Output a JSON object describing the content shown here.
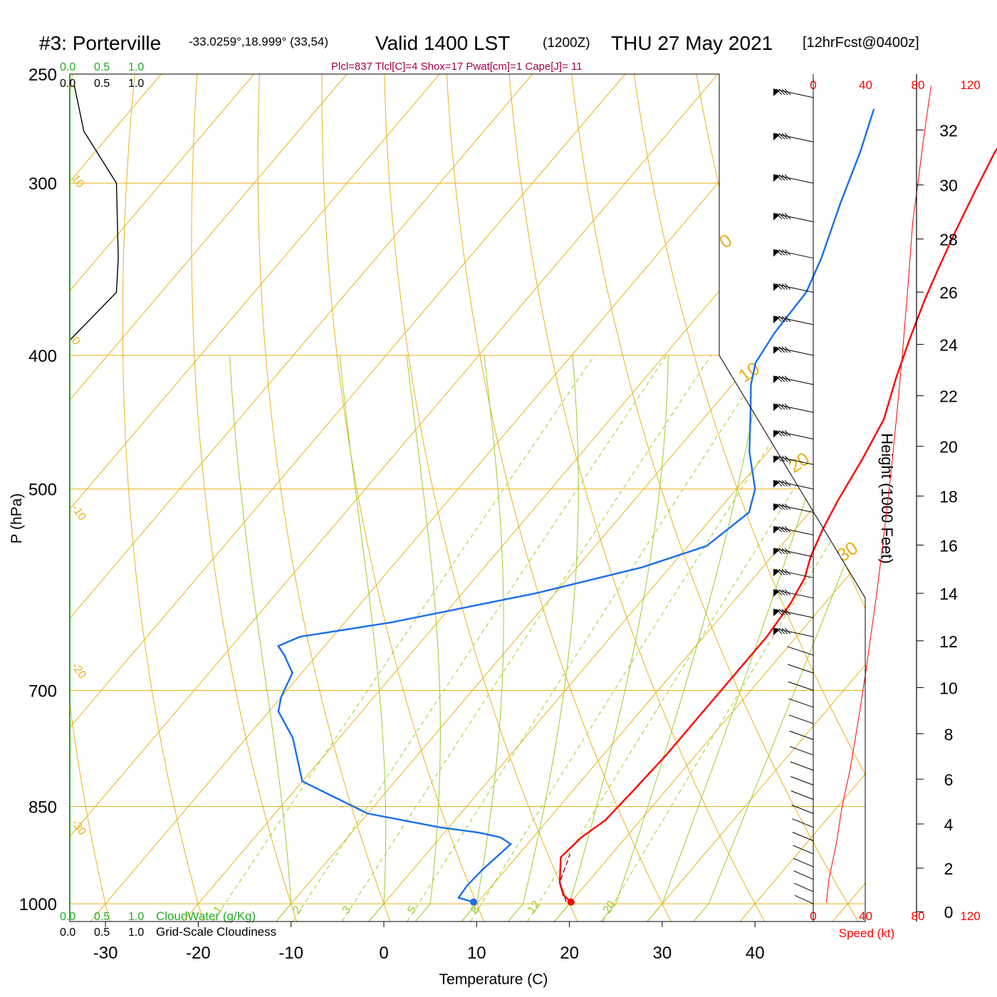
{
  "header": {
    "station": "#3: Porterville",
    "coords": "-33.0259°,18.999° (33,54)",
    "valid": "Valid 1400 LST",
    "zulu": "(1200Z)",
    "date": "THU 27 May 2021",
    "forecast": "[12hrFcst@0400z]",
    "params": "Plcl=837 Tlcl[C]=4 Shox=17 Pwat[cm]=1 Cape[J]= 11"
  },
  "colors": {
    "isotherm": "#e8b21c",
    "moist_adiabat": "#9ccc2c",
    "mixing_ratio": "#9ccc2c",
    "temperature": "#ff0000",
    "dewpoint": "#1a6fe8",
    "cloud_axis": "#22aa22",
    "params": "#a0004c",
    "wind_speed": "#ff0000",
    "frame": "#000000"
  },
  "chart_data": {
    "type": "line",
    "title": "#3: Porterville  Valid 1400 LST (1200Z) THU 27 May 2021",
    "xlabel": "Temperature (C)",
    "ylabel": "P (hPa)",
    "y2label": "Height (1000 Feet)",
    "xlim": [
      -35,
      36
    ],
    "ylim": [
      1030,
      250
    ],
    "y_scale": "log",
    "x_ticks": [
      "-30",
      "-20",
      "-10",
      "0",
      "10",
      "20",
      "30",
      "40"
    ],
    "y_ticks": [
      "250",
      "300",
      "400",
      "500",
      "700",
      "850",
      "1000"
    ],
    "height_ticks": [
      "0",
      "2",
      "4",
      "6",
      "8",
      "10",
      "12",
      "14",
      "16",
      "18",
      "20",
      "22",
      "24",
      "26",
      "28",
      "30",
      "32"
    ],
    "series": [
      {
        "name": "Temperature",
        "points": [
          [
            20.0,
            997
          ],
          [
            18.5,
            985
          ],
          [
            17.0,
            965
          ],
          [
            14.8,
            925
          ],
          [
            15.2,
            895
          ],
          [
            16.2,
            870
          ],
          [
            16.5,
            830
          ],
          [
            16.8,
            780
          ],
          [
            16.8,
            730
          ],
          [
            16.8,
            690
          ],
          [
            16.8,
            640
          ],
          [
            16.3,
            605
          ],
          [
            15.5,
            580
          ],
          [
            14.2,
            560
          ],
          [
            13.0,
            535
          ],
          [
            12.0,
            510
          ],
          [
            10.8,
            475
          ],
          [
            9.5,
            445
          ],
          [
            7.0,
            415
          ],
          [
            5.0,
            390
          ],
          [
            3.0,
            365
          ],
          [
            1.5,
            345
          ],
          [
            0.0,
            325
          ],
          [
            -1.5,
            305
          ],
          [
            -3.0,
            285
          ],
          [
            -3.8,
            265
          ]
        ],
        "legend": "Temperature"
      },
      {
        "name": "Dewpoint",
        "points": [
          [
            9.5,
            997
          ],
          [
            7.5,
            990
          ],
          [
            7.3,
            970
          ],
          [
            7.5,
            945
          ],
          [
            8.2,
            905
          ],
          [
            6.5,
            895
          ],
          [
            3.8,
            888
          ],
          [
            -1.0,
            880
          ],
          [
            -10.0,
            860
          ],
          [
            -20.0,
            815
          ],
          [
            -25.0,
            758
          ],
          [
            -29.0,
            725
          ],
          [
            -30.0,
            708
          ],
          [
            -31.0,
            680
          ],
          [
            -33.5,
            660
          ],
          [
            -35.0,
            650
          ],
          [
            -33.5,
            640
          ],
          [
            -25.0,
            625
          ],
          [
            -12.0,
            595
          ],
          [
            -3.0,
            570
          ],
          [
            2.0,
            550
          ],
          [
            3.5,
            520
          ],
          [
            2.0,
            500
          ],
          [
            -2.0,
            470
          ],
          [
            -5.5,
            440
          ],
          [
            -8.0,
            420
          ],
          [
            -9.5,
            405
          ],
          [
            -10.2,
            385
          ],
          [
            -10.5,
            360
          ],
          [
            -12.0,
            340
          ],
          [
            -15.0,
            310
          ],
          [
            -17.5,
            285
          ],
          [
            -20.0,
            265
          ]
        ],
        "legend": "Dewpoint"
      },
      {
        "name": "Parcel",
        "points": [
          [
            19.5,
            997
          ],
          [
            17.0,
            965
          ],
          [
            15.5,
            920
          ]
        ],
        "legend": "Parcel"
      }
    ],
    "surface_markers": [
      {
        "name": "surface-temperature",
        "x": 20.0,
        "p": 997
      },
      {
        "name": "surface-dewpoint",
        "x": 9.5,
        "p": 997
      }
    ],
    "isobars": [
      250,
      300,
      400,
      500,
      700,
      850,
      1000
    ],
    "isotherm_labels": [
      {
        "text": "10",
        "x": -10,
        "p": 310
      },
      {
        "text": "0",
        "x": 0,
        "p": 420
      },
      {
        "text": "-10",
        "x": -10,
        "p": 560
      },
      {
        "text": "-20",
        "x": -20,
        "p": 720
      },
      {
        "text": "-30",
        "x": -30,
        "p": 960
      },
      {
        "text": "0",
        "x": 0,
        "p": 360
      },
      {
        "text": "10",
        "x": 10,
        "p": 445
      },
      {
        "text": "20",
        "x": 20,
        "p": 540
      },
      {
        "text": "30",
        "x": 30,
        "p": 650
      }
    ],
    "mixing_ratio_labels": [
      "1",
      "2",
      "3",
      "5",
      "8",
      "12",
      "20"
    ],
    "wind_barbs_p": [
      260,
      280,
      300,
      320,
      340,
      360,
      380,
      400,
      420,
      440,
      460,
      480,
      500,
      520,
      540,
      560,
      580,
      600,
      620,
      640,
      660,
      680,
      700,
      720,
      740,
      760,
      780,
      800,
      820,
      840,
      860,
      880,
      900,
      920,
      940,
      960,
      980,
      1000
    ],
    "wind_speed": {
      "xlabel": "Speed (kt)",
      "ticks": [
        "0",
        "40",
        "80",
        "120"
      ],
      "xlim": [
        0,
        120
      ],
      "points": [
        [
          10,
          998
        ],
        [
          12,
          960
        ],
        [
          18,
          900
        ],
        [
          22,
          850
        ],
        [
          28,
          800
        ],
        [
          32,
          760
        ],
        [
          36,
          720
        ],
        [
          40,
          680
        ],
        [
          48,
          600
        ],
        [
          52,
          560
        ],
        [
          56,
          520
        ],
        [
          60,
          480
        ],
        [
          64,
          440
        ],
        [
          68,
          400
        ],
        [
          72,
          360
        ],
        [
          76,
          320
        ],
        [
          80,
          300
        ],
        [
          84,
          280
        ],
        [
          90,
          255
        ]
      ]
    },
    "cloud": {
      "cloudwater_label": "CloudWater (g/Kg)",
      "cloudiness_label": "Grid-Scale Cloudiness",
      "ticks": [
        "0.0",
        "0.5",
        "1.0"
      ],
      "cloudiness_points": [
        [
          0.05,
          255
        ],
        [
          0.15,
          275
        ],
        [
          0.5,
          300
        ],
        [
          0.52,
          340
        ],
        [
          0.5,
          360
        ],
        [
          0.0,
          390
        ]
      ]
    }
  }
}
